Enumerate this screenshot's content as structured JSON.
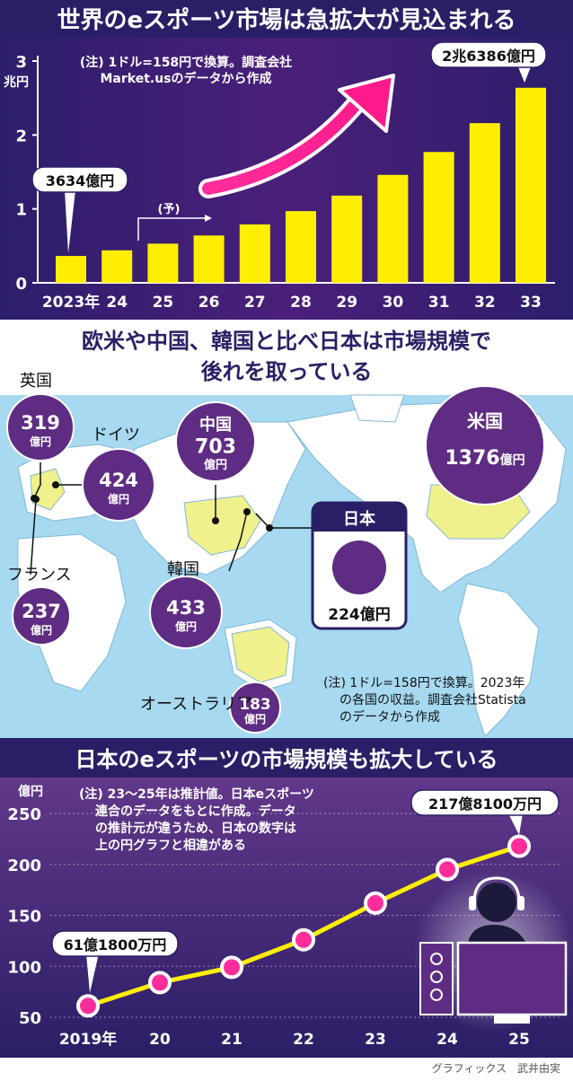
{
  "section1": {
    "title": "世界のeスポーツ市場は急拡大が見込まれる",
    "note_line1": "(注) 1ドル=158円で換算。調査会社",
    "note_line2": "Market.usのデータから作成",
    "forecast_label": "(予)",
    "callout_first": "3634億円",
    "callout_last": "2兆6386億円"
  },
  "section2": {
    "title_line1": "欧米や中国、韓国と比べ日本は市場規模で",
    "title_line2": "後れを取っている",
    "countries": [
      {
        "name": "英国",
        "value": "319",
        "unit": "億円"
      },
      {
        "name": "ドイツ",
        "value": "424",
        "unit": "億円"
      },
      {
        "name": "中国",
        "value": "703",
        "unit": "億円"
      },
      {
        "name": "米国",
        "value": "1376",
        "unit": "億円"
      },
      {
        "name": "フランス",
        "value": "237",
        "unit": "億円"
      },
      {
        "name": "韓国",
        "value": "433",
        "unit": "億円"
      },
      {
        "name": "オーストラリア",
        "value": "183",
        "unit": "億円"
      }
    ],
    "japan_label": "日本",
    "japan_value": "224億円",
    "note_line1": "(注) 1ドル=158円で換算。2023年",
    "note_line2": "の各国の収益。調査会社Statista",
    "note_line3": "のデータから作成"
  },
  "section3": {
    "title": "日本のeスポーツの市場規模も拡大している",
    "note_line1": "(注) 23〜25年は推計値。日本eスポーツ",
    "note_line2": "連合のデータをもとに作成。データ",
    "note_line3": "の推計元が違うため、日本の数字は",
    "note_line4": "上の円グラフと相違がある",
    "callout_first": "61億1800万円",
    "callout_last": "217億8100万円"
  },
  "credit": "グラフィックス　武井由実",
  "colors": {
    "navy": "#2a1f66",
    "purple": "#5e2c82",
    "yellow": "#ffee00",
    "map_water": "#a7d9f0",
    "map_land": "#ffffff",
    "map_highlight": "#f0f08c",
    "pink": "#ff1493"
  },
  "chart_data": [
    {
      "type": "bar",
      "categories": [
        "2023年",
        "24",
        "25",
        "26",
        "27",
        "28",
        "29",
        "30",
        "31",
        "32",
        "33"
      ],
      "values": [
        0.3634,
        0.44,
        0.53,
        0.64,
        0.79,
        0.97,
        1.18,
        1.46,
        1.77,
        2.16,
        2.6386
      ],
      "ylabel": "兆円",
      "yticks": [
        "0",
        "1",
        "2",
        "3"
      ],
      "ylim": [
        0,
        3
      ],
      "grid": false
    },
    {
      "type": "line",
      "x": [
        "2019年",
        "20",
        "21",
        "22",
        "23",
        "24",
        "25"
      ],
      "values": [
        61.18,
        84,
        99,
        126,
        162,
        195,
        217.81
      ],
      "ylabel": "億円",
      "yticks": [
        "50",
        "100",
        "150",
        "200",
        "250"
      ],
      "ylim": [
        50,
        250
      ],
      "grid": true
    }
  ]
}
